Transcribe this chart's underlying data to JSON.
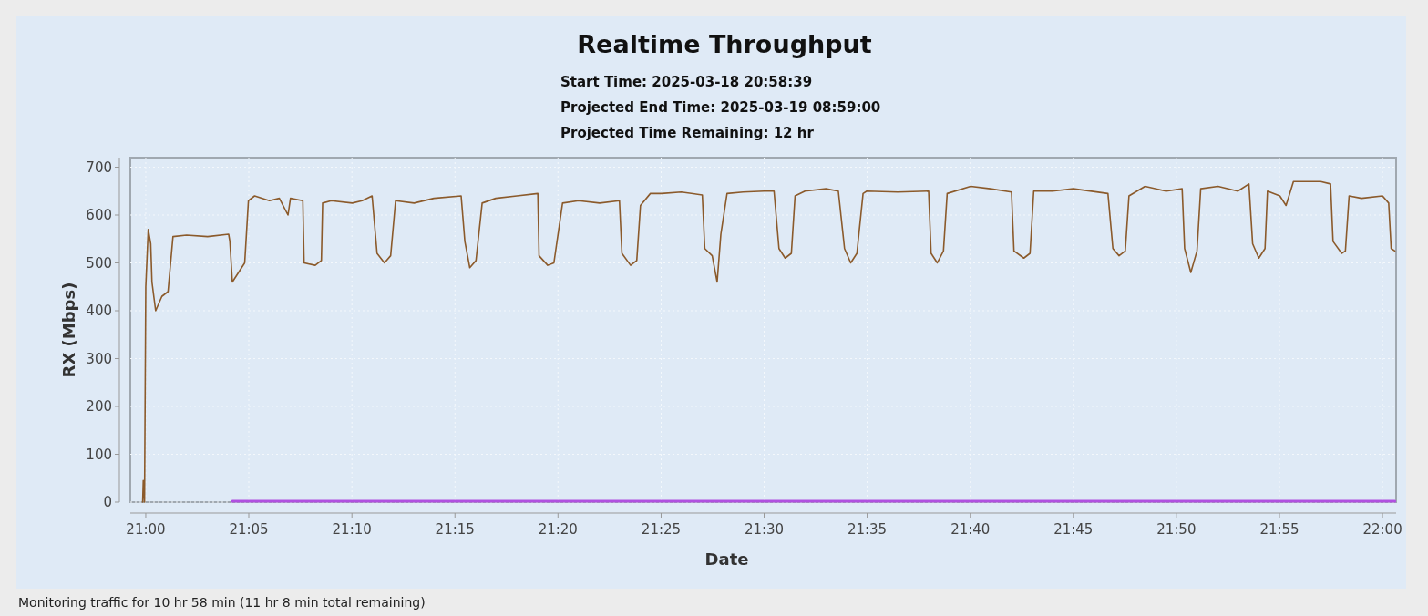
{
  "chart_data": {
    "type": "line",
    "title": "Realtime Throughput",
    "subtitle": "Start Time: 2025-03-18 20:58:39\nProjected End Time: 2025-03-19 08:59:00\nProjected Time Remaining: 12 hr",
    "xlabel": "Date",
    "ylabel": "RX (Mbps)",
    "annotations": [
      "Monitoring traffic for 10 hr 58 min   (11 hr 8 min total remaining)"
    ],
    "xlim": [
      20.9875,
      22.011
    ],
    "ylim": [
      0,
      720
    ],
    "yticks": [
      0,
      100,
      200,
      300,
      400,
      500,
      600,
      700
    ],
    "xticks": [
      {
        "value": 21,
        "label": "21:00"
      },
      {
        "value": 21.0833,
        "label": "21:05"
      },
      {
        "value": 21.1667,
        "label": "21:10"
      },
      {
        "value": 21.25,
        "label": "21:15"
      },
      {
        "value": 21.3333,
        "label": "21:20"
      },
      {
        "value": 21.4167,
        "label": "21:25"
      },
      {
        "value": 21.5,
        "label": "21:30"
      },
      {
        "value": 21.5833,
        "label": "21:35"
      },
      {
        "value": 21.6667,
        "label": "21:40"
      },
      {
        "value": 21.75,
        "label": "21:45"
      },
      {
        "value": 21.8333,
        "label": "21:50"
      },
      {
        "value": 21.9167,
        "label": "21:55"
      },
      {
        "value": 22,
        "label": "22:00"
      }
    ],
    "grid": true,
    "marker": "none",
    "line_style": "solid",
    "series": [
      {
        "color": "#8b5a2b",
        "x": [
          20.9975,
          20.998,
          20.999,
          21,
          21.002,
          21.004,
          21.005,
          21.008,
          21.013,
          21.018,
          21.022,
          21.033,
          21.05,
          21.067,
          21.068,
          21.07,
          21.075,
          21.08,
          21.083,
          21.088,
          21.1,
          21.108,
          21.115,
          21.117,
          21.127,
          21.128,
          21.137,
          21.142,
          21.143,
          21.15,
          21.167,
          21.175,
          21.183,
          21.187,
          21.193,
          21.198,
          21.202,
          21.217,
          21.233,
          21.255,
          21.258,
          21.262,
          21.267,
          21.272,
          21.283,
          21.3,
          21.317,
          21.318,
          21.325,
          21.33,
          21.337,
          21.35,
          21.367,
          21.383,
          21.385,
          21.392,
          21.397,
          21.4,
          21.408,
          21.417,
          21.433,
          21.45,
          21.452,
          21.458,
          21.462,
          21.465,
          21.47,
          21.483,
          21.5,
          21.508,
          21.512,
          21.517,
          21.522,
          21.525,
          21.533,
          21.55,
          21.56,
          21.565,
          21.57,
          21.575,
          21.58,
          21.583,
          21.608,
          21.633,
          21.635,
          21.64,
          21.645,
          21.648,
          21.667,
          21.683,
          21.7,
          21.702,
          21.71,
          21.715,
          21.718,
          21.733,
          21.75,
          21.778,
          21.782,
          21.787,
          21.792,
          21.795,
          21.808,
          21.825,
          21.838,
          21.84,
          21.845,
          21.85,
          21.853,
          21.867,
          21.883,
          21.892,
          21.895,
          21.9,
          21.905,
          21.907,
          21.917,
          21.922,
          21.928,
          21.95,
          21.958,
          21.96,
          21.967,
          21.97,
          21.973,
          21.983,
          22,
          22.005,
          22.007,
          22.01
        ],
        "values": [
          0,
          45,
          0,
          450,
          570,
          540,
          460,
          400,
          430,
          440,
          555,
          558,
          555,
          560,
          545,
          460,
          480,
          500,
          630,
          640,
          630,
          635,
          600,
          635,
          630,
          500,
          495,
          505,
          625,
          630,
          625,
          630,
          640,
          520,
          500,
          515,
          630,
          625,
          635,
          640,
          545,
          490,
          505,
          625,
          635,
          640,
          645,
          515,
          495,
          500,
          625,
          630,
          625,
          630,
          520,
          495,
          505,
          620,
          645,
          645,
          648,
          642,
          530,
          515,
          460,
          560,
          645,
          648,
          650,
          650,
          530,
          510,
          520,
          640,
          650,
          655,
          650,
          530,
          500,
          520,
          645,
          650,
          648,
          650,
          520,
          500,
          525,
          645,
          660,
          655,
          648,
          525,
          510,
          520,
          650,
          650,
          655,
          645,
          530,
          515,
          525,
          640,
          660,
          650,
          655,
          530,
          480,
          525,
          655,
          660,
          650,
          665,
          540,
          510,
          530,
          650,
          640,
          620,
          670,
          670,
          665,
          545,
          520,
          525,
          640,
          635,
          640,
          625,
          530,
          525
        ]
      },
      {
        "color": "#b050e0",
        "x": [
          21.07,
          22.01
        ],
        "values": [
          2,
          2
        ]
      }
    ]
  }
}
